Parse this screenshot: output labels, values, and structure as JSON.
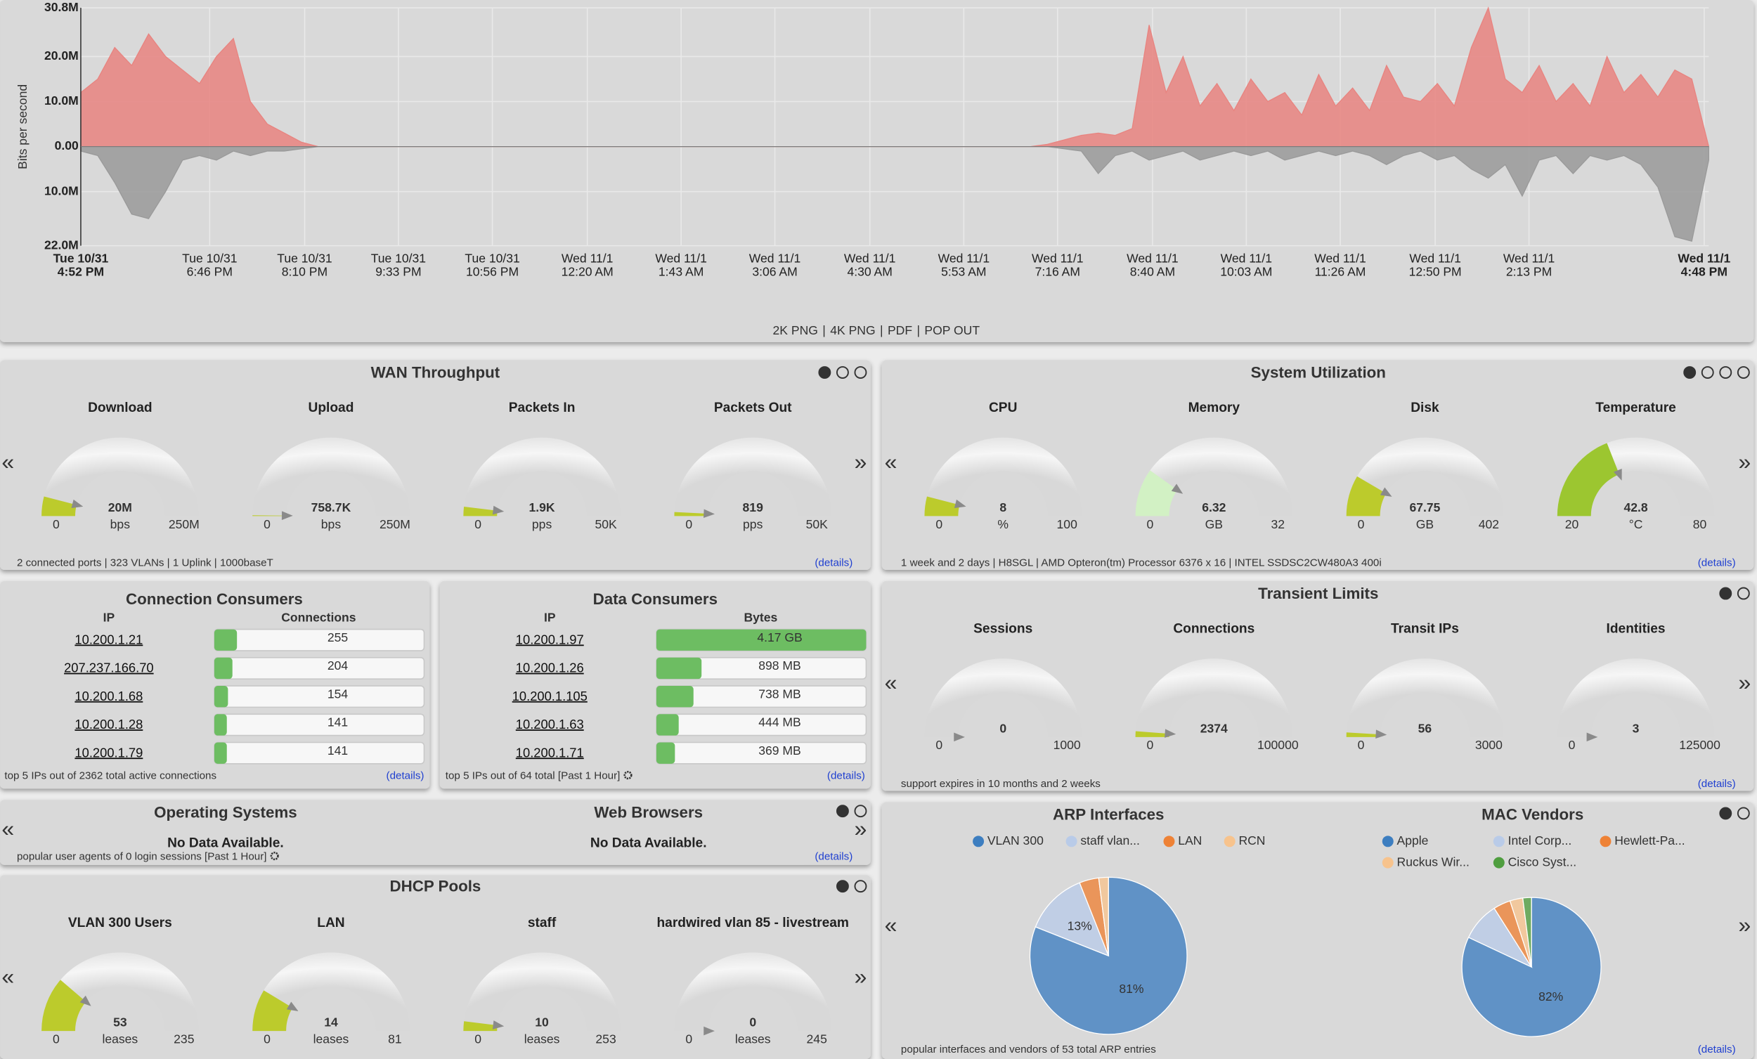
{
  "traffic": {
    "type": "area",
    "y_label": "Bits per second",
    "ylim": [
      -22,
      30.8
    ],
    "yticks": [
      {
        "value": 30.8,
        "label": "30.8M"
      },
      {
        "value": 20,
        "label": "20.0M"
      },
      {
        "value": 10,
        "label": "10.0M"
      },
      {
        "value": 0,
        "label": "0.00"
      },
      {
        "value": -10,
        "label": "10.0M"
      },
      {
        "value": -22,
        "label": "22.0M"
      }
    ],
    "xlim": [
      0,
      96
    ],
    "xticks": [
      {
        "value": 0,
        "label": [
          "Tue 10/31",
          "4:52 PM"
        ]
      },
      {
        "value": 7.6,
        "label": [
          "Tue 10/31",
          "6:46 PM"
        ]
      },
      {
        "value": 13.2,
        "label": [
          "Tue 10/31",
          "8:10 PM"
        ]
      },
      {
        "value": 18.73,
        "label": [
          "Tue 10/31",
          "9:33 PM"
        ]
      },
      {
        "value": 24.27,
        "label": [
          "Tue 10/31",
          "10:56 PM"
        ]
      },
      {
        "value": 29.87,
        "label": [
          "Wed 11/1",
          "12:20 AM"
        ]
      },
      {
        "value": 35.4,
        "label": [
          "Wed 11/1",
          "1:43 AM"
        ]
      },
      {
        "value": 40.93,
        "label": [
          "Wed 11/1",
          "3:06 AM"
        ]
      },
      {
        "value": 46.53,
        "label": [
          "Wed 11/1",
          "4:30 AM"
        ]
      },
      {
        "value": 52.07,
        "label": [
          "Wed 11/1",
          "5:53 AM"
        ]
      },
      {
        "value": 57.6,
        "label": [
          "Wed 11/1",
          "7:16 AM"
        ]
      },
      {
        "value": 63.2,
        "label": [
          "Wed 11/1",
          "8:40 AM"
        ]
      },
      {
        "value": 68.73,
        "label": [
          "Wed 11/1",
          "10:03 AM"
        ]
      },
      {
        "value": 74.27,
        "label": [
          "Wed 11/1",
          "11:26 AM"
        ]
      },
      {
        "value": 79.87,
        "label": [
          "Wed 11/1",
          "12:50 PM"
        ]
      },
      {
        "value": 85.4,
        "label": [
          "Wed 11/1",
          "2:13 PM"
        ]
      },
      {
        "value": 95.73,
        "label": [
          "Wed 11/1",
          "4:48 PM"
        ]
      }
    ],
    "series": [
      {
        "color": "#e8837f",
        "values": [
          12,
          15,
          22,
          18,
          25,
          20,
          17,
          14,
          20,
          24,
          10,
          5,
          3,
          1,
          0,
          0,
          0,
          0,
          0,
          0,
          0,
          0,
          0,
          0,
          0,
          0,
          0,
          0,
          0,
          0,
          0,
          0,
          0,
          0,
          0,
          0,
          0,
          0,
          0,
          0,
          0,
          0,
          0,
          0,
          0,
          0,
          0,
          0,
          0,
          0,
          0,
          0,
          0,
          0,
          0,
          0,
          0,
          0.5,
          1.5,
          2.5,
          3,
          2.5,
          4,
          27,
          12,
          20,
          9,
          14,
          8,
          15,
          10,
          12,
          7,
          16,
          9,
          13,
          8,
          18,
          11,
          10,
          14,
          9,
          22,
          30.8,
          15,
          12,
          18,
          10,
          14,
          9,
          20,
          12,
          16,
          11,
          17,
          15,
          0
        ]
      },
      {
        "color": "#999999",
        "values": [
          -1,
          -2,
          -8,
          -15,
          -16,
          -10,
          -3,
          -2,
          -3,
          -1,
          -2,
          -1,
          -1,
          -0.5,
          0,
          0,
          0,
          0,
          0,
          0,
          0,
          0,
          0,
          0,
          0,
          0,
          0,
          0,
          0,
          0,
          0,
          0,
          0,
          0,
          0,
          0,
          0,
          0,
          0,
          0,
          0,
          0,
          0,
          0,
          0,
          0,
          0,
          0,
          0,
          0,
          0,
          0,
          0,
          0,
          0,
          0,
          0,
          0,
          -0.5,
          -1,
          -6,
          -2,
          -1,
          -3,
          -2,
          -1,
          -3,
          -2,
          -1,
          -2,
          -1,
          -3,
          -2,
          -1,
          -2,
          -1,
          -2,
          -4,
          -2,
          -1,
          -3,
          -2,
          -5,
          -7,
          -4,
          -11,
          -3,
          -2,
          -6,
          -2,
          -3,
          -2,
          -4,
          -9,
          -20,
          -21,
          -3
        ]
      }
    ]
  },
  "export_links": {
    "items": [
      "2K PNG",
      "4K PNG",
      "PDF",
      "POP OUT"
    ],
    "separator": "|"
  },
  "nav": {
    "prev": "«",
    "next": "»"
  },
  "wan_throughput": {
    "title": "WAN Throughput",
    "gauges": [
      {
        "title": "Download",
        "value": {
          "value": 20,
          "label": "20M"
        },
        "unit": "bps",
        "min": 0,
        "max": {
          "value": 250,
          "label": "250M"
        },
        "color": "#bccb2c"
      },
      {
        "title": "Upload",
        "value": {
          "value": 0.7587,
          "label": "758.7K"
        },
        "unit": "bps",
        "min": 0,
        "max": {
          "value": 250,
          "label": "250M"
        },
        "color": "#bccb2c"
      },
      {
        "title": "Packets In",
        "value": {
          "value": 1.9,
          "label": "1.9K"
        },
        "unit": "pps",
        "min": 0,
        "max": {
          "value": 50,
          "label": "50K"
        },
        "color": "#bccb2c"
      },
      {
        "title": "Packets Out",
        "value": 819,
        "unit": "pps",
        "min": 0,
        "max": {
          "value": 50000,
          "label": "50K"
        },
        "color": "#bccb2c"
      }
    ],
    "footer": "2 connected ports | 323 VLANs | 1 Uplink | 1000baseT",
    "details": "(details)"
  },
  "system_utilization": {
    "title": "System Utilization",
    "gauges": [
      {
        "title": "CPU",
        "value": 8,
        "unit": "%",
        "min": 0,
        "max": 100,
        "color": "#bccb2c"
      },
      {
        "title": "Memory",
        "value": 6.32,
        "unit": "GB",
        "min": 0,
        "max": 32,
        "color": "#d2f1c4"
      },
      {
        "title": "Disk",
        "value": 67.75,
        "unit": "GB",
        "min": 0,
        "max": 402,
        "color": "#bccb2c"
      },
      {
        "title": "Temperature",
        "value": 42.8,
        "unit": "°C",
        "min": 20,
        "max": 80,
        "color": "#9cc630"
      }
    ],
    "footer": "1 week and 2 days | H8SGL | AMD Opteron(tm) Processor 6376 x 16 | INTEL SSDSC2CW480A3 400i",
    "details": "(details)"
  },
  "connection_consumers": {
    "title": "Connection Consumers",
    "columns": [
      "IP",
      "Connections"
    ],
    "rows": [
      {
        "ip": "10.200.1.21",
        "value": 255
      },
      {
        "ip": "207.237.166.70",
        "value": 204
      },
      {
        "ip": "10.200.1.68",
        "value": 154
      },
      {
        "ip": "10.200.1.28",
        "value": 141
      },
      {
        "ip": "10.200.1.79",
        "value": 141
      }
    ],
    "footer": [
      "top 5 IPs out of ",
      2362,
      " total active connections"
    ],
    "details": "(details)"
  },
  "data_consumers": {
    "title": "Data Consumers",
    "columns": [
      "IP",
      "Bytes"
    ],
    "rows": [
      {
        "ip": "10.200.1.97",
        "value": {
          "value": 4170,
          "label": "4.17 GB"
        }
      },
      {
        "ip": "10.200.1.26",
        "value": {
          "value": 898,
          "label": "898 MB"
        }
      },
      {
        "ip": "10.200.1.105",
        "value": {
          "value": 738,
          "label": "738 MB"
        }
      },
      {
        "ip": "10.200.1.63",
        "value": {
          "value": 444,
          "label": "444 MB"
        }
      },
      {
        "ip": "10.200.1.71",
        "value": {
          "value": 369,
          "label": "369 MB"
        }
      }
    ],
    "footer": "top 5 IPs out of 64 total [Past 1 Hour]",
    "details": "(details)"
  },
  "transient_limits": {
    "title": "Transient Limits",
    "gauges": [
      {
        "title": "Sessions",
        "value": 0,
        "unit": "",
        "min": 0,
        "max": 1000,
        "color": "#bccb2c"
      },
      {
        "title": "Connections",
        "value": 2374,
        "unit": "",
        "min": 0,
        "max": 100000,
        "color": "#bccb2c"
      },
      {
        "title": "Transit IPs",
        "value": 56,
        "unit": "",
        "min": 0,
        "max": 3000,
        "color": "#bccb2c"
      },
      {
        "title": "Identities",
        "value": 3,
        "unit": "",
        "min": 0,
        "max": 125000,
        "color": "#bccb2c"
      }
    ],
    "footer": "support expires in 10 months and 2 weeks",
    "details": "(details)"
  },
  "user_agents": {
    "panels": [
      {
        "title": "Operating Systems",
        "message": "No Data Available."
      },
      {
        "title": "Web Browsers",
        "message": "No Data Available."
      }
    ],
    "footer": "popular user agents of 0 login sessions [Past 1 Hour]",
    "details": "(details)"
  },
  "dhcp_pools": {
    "title": "DHCP Pools",
    "gauges": [
      {
        "title": "VLAN 300 Users",
        "value": 53,
        "unit": "leases",
        "min": 0,
        "max": 235,
        "color": "#bccb2c"
      },
      {
        "title": "LAN",
        "value": 14,
        "unit": "leases",
        "min": 0,
        "max": 81,
        "color": "#bccb2c"
      },
      {
        "title": "staff",
        "value": 10,
        "unit": "leases",
        "min": 0,
        "max": 253,
        "color": "#bccb2c"
      },
      {
        "title": "hardwired vlan 85 - livestream",
        "value": 0,
        "unit": "leases",
        "min": 0,
        "max": 245,
        "color": "#bccb2c"
      }
    ]
  },
  "arp": {
    "charts": [
      {
        "type": "pie",
        "title": "ARP Interfaces",
        "categories": [
          "VLAN 300",
          "staff vlan...",
          "LAN",
          "RCN"
        ],
        "values": [
          81,
          13,
          4,
          2
        ],
        "value_labels": [
          "81%",
          "13%",
          null,
          null
        ],
        "colors": [
          "#3d7ec0",
          "#b9cbe8",
          "#ee8236",
          "#f7c38d"
        ]
      },
      {
        "type": "pie",
        "title": "MAC Vendors",
        "categories": [
          "Apple",
          "Intel Corp...",
          "Hewlett-Pa...",
          "Ruckus Wir...",
          "Cisco Syst..."
        ],
        "values": [
          82,
          9,
          4,
          3,
          2
        ],
        "value_labels": [
          "82%",
          null,
          null,
          null,
          null
        ],
        "colors": [
          "#3d7ec0",
          "#b9cbe8",
          "#ee8236",
          "#f7c38d",
          "#4f9e3f"
        ]
      }
    ],
    "footer": "popular interfaces and vendors of 53 total ARP entries",
    "details": "(details)"
  }
}
